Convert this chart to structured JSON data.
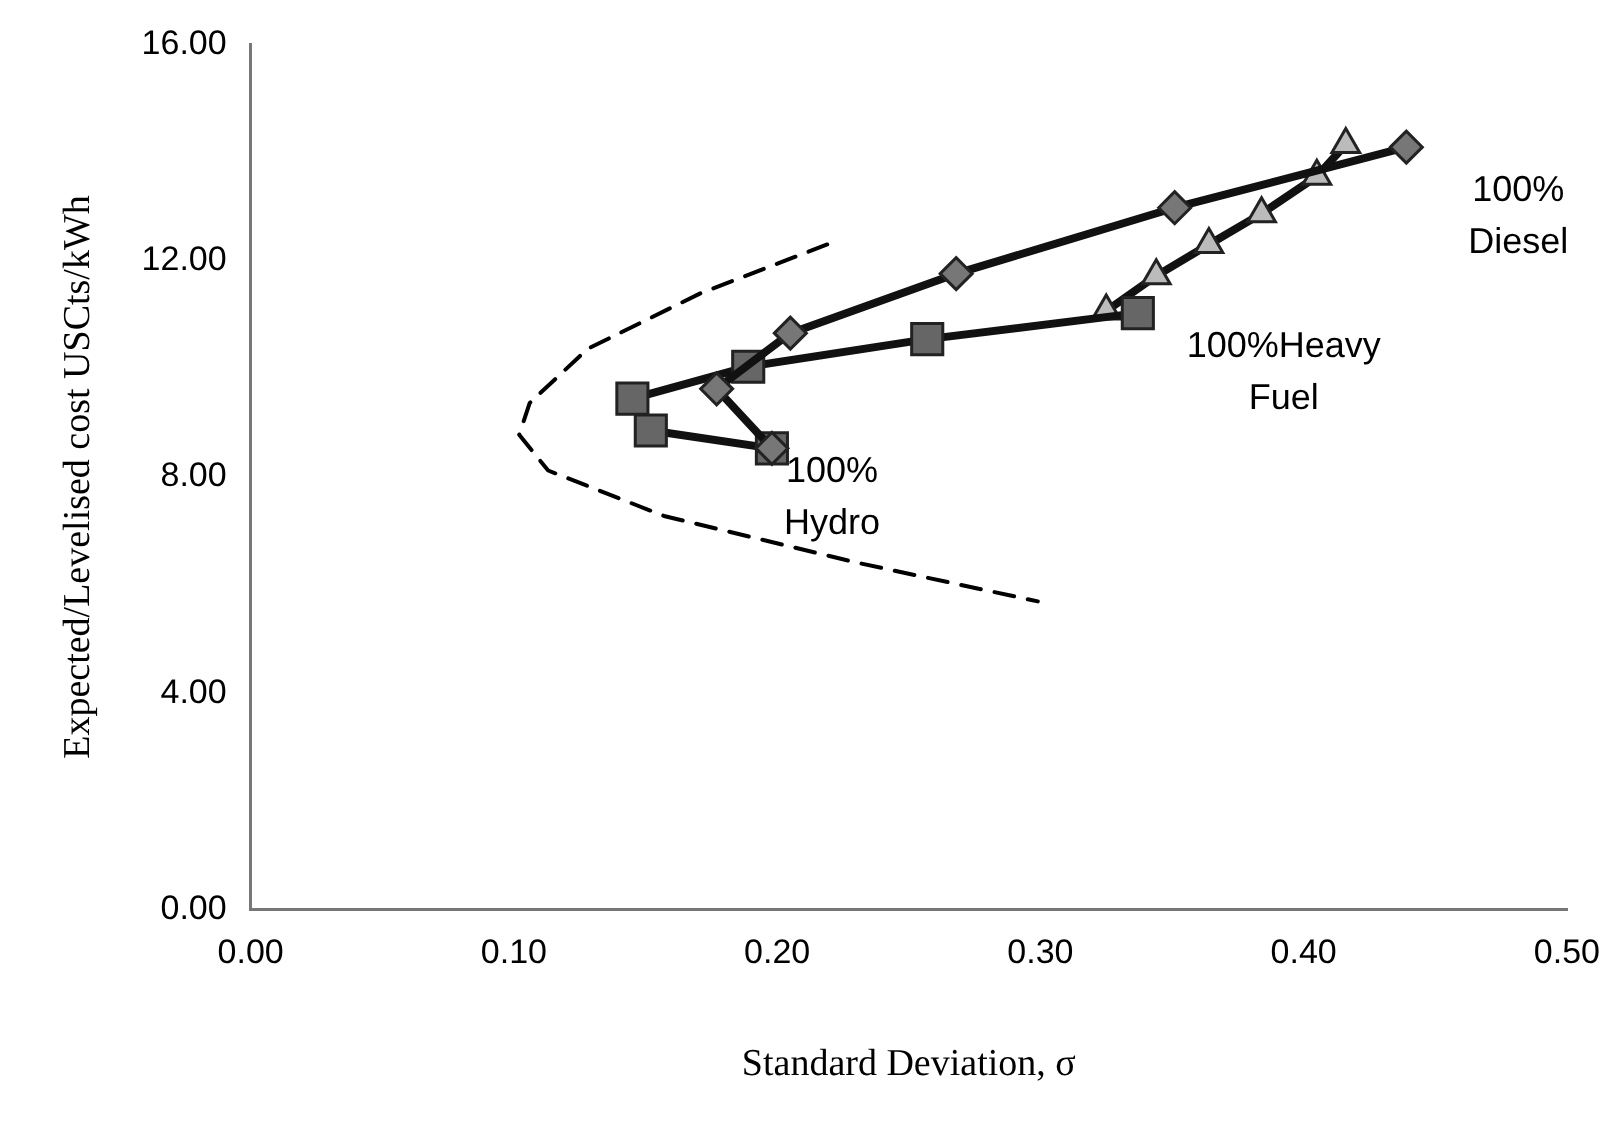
{
  "chart_data": {
    "type": "line",
    "xlabel": "Standard Deviation, σ",
    "ylabel": "Expected/Levelised cost USCts/kWh",
    "xlim": [
      0,
      0.5
    ],
    "xticks": [
      {
        "value": 0,
        "label": "0.00"
      },
      {
        "value": 0.1,
        "label": "0.10"
      },
      {
        "value": 0.2,
        "label": "0.20"
      },
      {
        "value": 0.3,
        "label": "0.30"
      },
      {
        "value": 0.4,
        "label": "0.40"
      },
      {
        "value": 0.5,
        "label": "0.50"
      }
    ],
    "ylim": [
      0,
      16
    ],
    "yticks": [
      {
        "value": 0,
        "label": "0.00"
      },
      {
        "value": 4,
        "label": "4.00"
      },
      {
        "value": 8,
        "label": "8.00"
      },
      {
        "value": 12,
        "label": "12.00"
      },
      {
        "value": 16,
        "label": "16.00"
      }
    ],
    "grid": false,
    "legend": false,
    "series": [
      {
        "color": "#777777",
        "marker": "diamond",
        "x": [
          0.198,
          0.177,
          0.205,
          0.268,
          0.351,
          0.439
        ],
        "values": [
          8.53,
          9.63,
          10.66,
          11.76,
          12.98,
          14.1
        ]
      },
      {
        "color": "#666666",
        "marker": "square",
        "x": [
          0.198,
          0.152,
          0.145,
          0.189,
          0.257,
          0.337
        ],
        "values": [
          8.53,
          8.86,
          9.45,
          10.04,
          10.55,
          11.03
        ]
      },
      {
        "color": "#bbbbbb",
        "marker": "triangle",
        "x": [
          0.325,
          0.344,
          0.364,
          0.384,
          0.405,
          0.416
        ],
        "values": [
          11.07,
          11.72,
          12.3,
          12.87,
          13.56,
          14.15
        ]
      },
      {
        "color": "#000000",
        "marker": "none",
        "line_style": "dashed",
        "x": [
          0.219,
          0.171,
          0.128,
          0.106,
          0.102,
          0.113,
          0.157,
          0.229,
          0.299
        ],
        "values": [
          12.3,
          11.4,
          10.37,
          9.37,
          8.78,
          8.12,
          7.28,
          6.43,
          5.7
        ]
      }
    ],
    "annotations": [
      {
        "text": "100%\nHydro",
        "x": 0.198,
        "y": 8.53
      },
      {
        "text": "100%Heavy\nFuel",
        "x": 0.337,
        "y": 11.03
      },
      {
        "text": "100%\nDiesel",
        "x": 0.439,
        "y": 14.1
      }
    ]
  }
}
